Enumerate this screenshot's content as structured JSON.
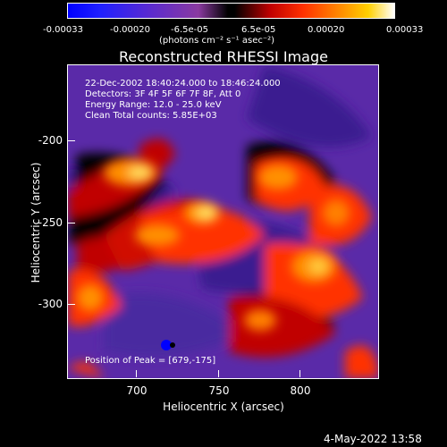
{
  "colorbar": {
    "ticks": [
      "-0.00033",
      "-0.00020",
      "-6.5e-05",
      "6.5e-05",
      "0.00020",
      "0.00033"
    ],
    "unit": "(photons cm⁻² s⁻¹ asec⁻²)",
    "colors": [
      "#0000ff",
      "#8a3aa0",
      "#000000",
      "#c00000",
      "#ff8000",
      "#ffffff"
    ]
  },
  "title": "Reconstructed RHESSI Image",
  "info": {
    "time_range": "22-Dec-2002 18:40:24.000 to 18:46:24.000",
    "detectors": "Detectors: 3F 4F 5F 6F 7F 8F, Att 0",
    "energy": "Energy Range: 12.0 - 25.0 keV",
    "method_counts": "Clean     Total counts: 5.85E+03",
    "peak": "Position of Peak = [679,-175]"
  },
  "axes": {
    "xlabel": "Heliocentric X (arcsec)",
    "ylabel": "Heliocentric Y (arcsec)",
    "xticks": [
      "700",
      "750",
      "800"
    ],
    "yticks": [
      "-200",
      "-250",
      "-300"
    ]
  },
  "timestamp": "4-May-2022 13:58"
}
